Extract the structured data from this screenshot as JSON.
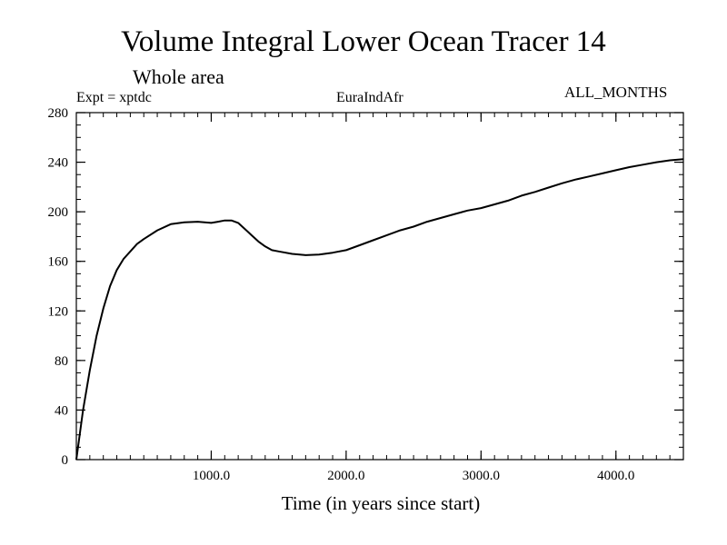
{
  "chart_data": {
    "type": "line",
    "title": "Volume Integral Lower Ocean Tracer 14",
    "subtitle": "Whole area",
    "annotations": {
      "left": "Expt = xptdc",
      "center": "EuraIndAfr",
      "right": "ALL_MONTHS"
    },
    "xlabel": "Time (in years since start)",
    "ylabel": "",
    "xlim": [
      0,
      4500
    ],
    "ylim": [
      0,
      280
    ],
    "xticks": [
      1000,
      2000,
      3000,
      4000
    ],
    "xtick_labels": [
      "1000.0",
      "2000.0",
      "3000.0",
      "4000.0"
    ],
    "x_minor_step": 100,
    "yticks": [
      0,
      40,
      80,
      120,
      160,
      200,
      240,
      280
    ],
    "ytick_labels": [
      "0",
      "40",
      "80",
      "120",
      "160",
      "200",
      "240",
      "280"
    ],
    "y_minor_step": 10,
    "grid": false,
    "legend": "none",
    "line_color": "#000000",
    "series": [
      {
        "x": [
          0,
          50,
          100,
          150,
          200,
          250,
          300,
          350,
          400,
          450,
          500,
          600,
          700,
          800,
          900,
          1000,
          1050,
          1100,
          1150,
          1200,
          1250,
          1300,
          1350,
          1400,
          1450,
          1500,
          1600,
          1700,
          1800,
          1900,
          2000,
          2100,
          2200,
          2300,
          2400,
          2500,
          2600,
          2700,
          2800,
          2900,
          3000,
          3100,
          3200,
          3300,
          3400,
          3500,
          3600,
          3700,
          3800,
          3900,
          4000,
          4100,
          4200,
          4300,
          4400,
          4500
        ],
        "y": [
          0,
          40,
          72,
          100,
          122,
          140,
          153,
          162,
          168,
          174,
          178,
          185,
          190,
          191.5,
          192,
          191,
          192,
          193,
          193,
          191,
          186,
          181,
          176,
          172,
          169,
          168,
          166,
          165,
          165.5,
          167,
          169,
          173,
          177,
          181,
          185,
          188,
          192,
          195,
          198,
          201,
          203,
          206,
          209,
          213,
          216,
          219.5,
          223,
          226,
          228.5,
          231,
          233.5,
          236,
          238,
          240,
          241.5,
          242.5
        ]
      }
    ]
  }
}
